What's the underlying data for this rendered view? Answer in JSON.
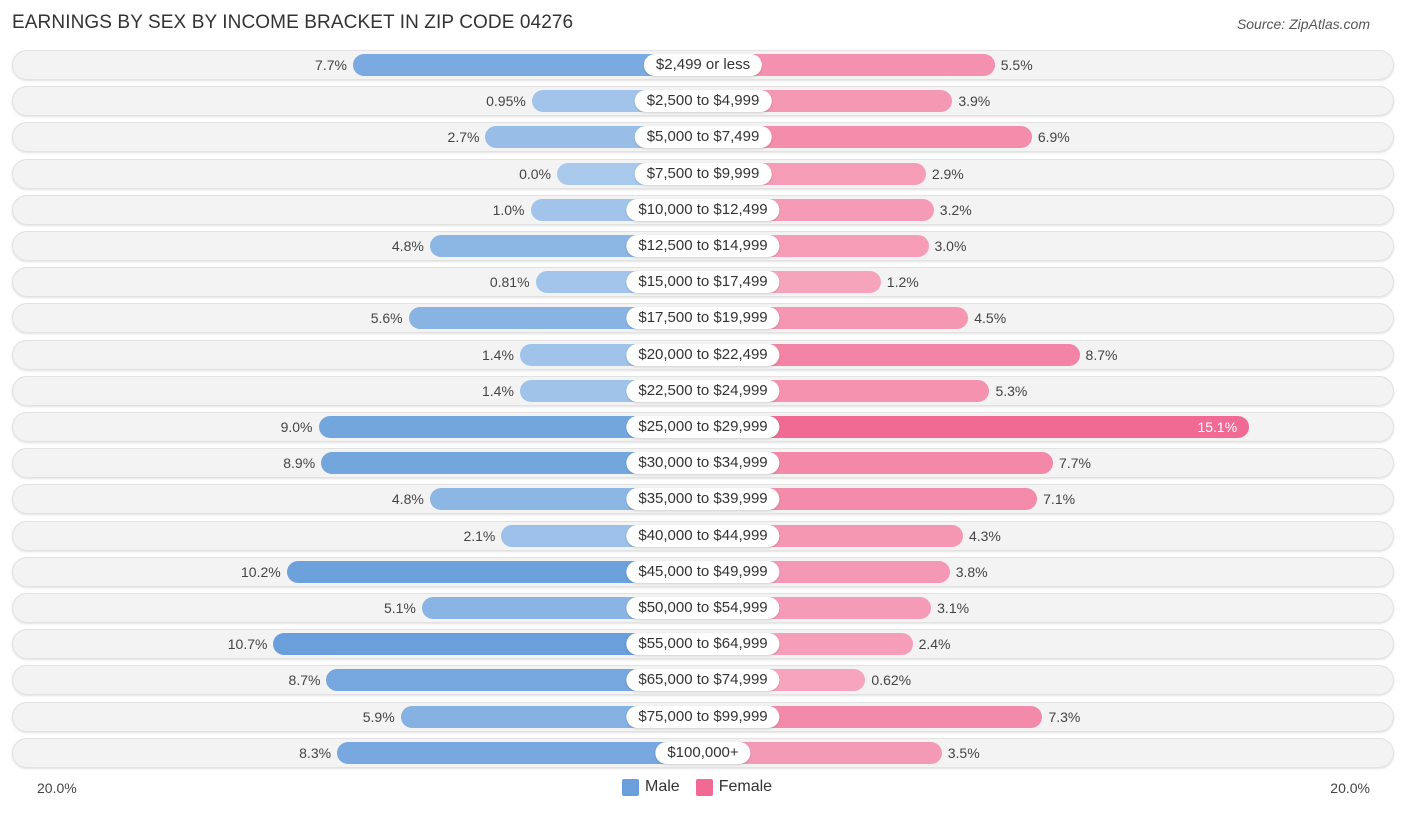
{
  "title": "EARNINGS BY SEX BY INCOME BRACKET IN ZIP CODE 04276",
  "source": "Source: ZipAtlas.com",
  "colors": {
    "male": "#6a9fdb",
    "male_light": "#a8c8ec",
    "female": "#f06a93",
    "female_light": "#f7a8c0"
  },
  "chart_data": {
    "type": "bar",
    "orientation": "horizontal-diverging",
    "title": "EARNINGS BY SEX BY INCOME BRACKET IN ZIP CODE 04276",
    "xlabel": "",
    "ylabel": "",
    "axis_min_label": "20.0%",
    "axis_max_label": "20.0%",
    "xlim": [
      -20,
      20
    ],
    "legend_position": "bottom-center",
    "categories": [
      "$2,499 or less",
      "$2,500 to $4,999",
      "$5,000 to $7,499",
      "$7,500 to $9,999",
      "$10,000 to $12,499",
      "$12,500 to $14,999",
      "$15,000 to $17,499",
      "$17,500 to $19,999",
      "$20,000 to $22,499",
      "$22,500 to $24,999",
      "$25,000 to $29,999",
      "$30,000 to $34,999",
      "$35,000 to $39,999",
      "$40,000 to $44,999",
      "$45,000 to $49,999",
      "$50,000 to $54,999",
      "$55,000 to $64,999",
      "$65,000 to $74,999",
      "$75,000 to $99,999",
      "$100,000+"
    ],
    "series": [
      {
        "name": "Male",
        "values": [
          7.7,
          0.95,
          2.7,
          0.0,
          1.0,
          4.8,
          0.81,
          5.6,
          1.4,
          1.4,
          9.0,
          8.9,
          4.8,
          2.1,
          10.2,
          5.1,
          10.7,
          8.7,
          5.9,
          8.3
        ],
        "labels": [
          "7.7%",
          "0.95%",
          "2.7%",
          "0.0%",
          "1.0%",
          "4.8%",
          "0.81%",
          "5.6%",
          "1.4%",
          "1.4%",
          "9.0%",
          "8.9%",
          "4.8%",
          "2.1%",
          "10.2%",
          "5.1%",
          "10.7%",
          "8.7%",
          "5.9%",
          "8.3%"
        ]
      },
      {
        "name": "Female",
        "values": [
          5.5,
          3.9,
          6.9,
          2.9,
          3.2,
          3.0,
          1.2,
          4.5,
          8.7,
          5.3,
          15.1,
          7.7,
          7.1,
          4.3,
          3.8,
          3.1,
          2.4,
          0.62,
          7.3,
          3.5
        ],
        "labels": [
          "5.5%",
          "3.9%",
          "6.9%",
          "2.9%",
          "3.2%",
          "3.0%",
          "1.2%",
          "4.5%",
          "8.7%",
          "5.3%",
          "15.1%",
          "7.7%",
          "7.1%",
          "4.3%",
          "3.8%",
          "3.1%",
          "2.4%",
          "0.62%",
          "7.3%",
          "3.5%"
        ]
      }
    ]
  },
  "legend": [
    {
      "label": "Male"
    },
    {
      "label": "Female"
    }
  ]
}
